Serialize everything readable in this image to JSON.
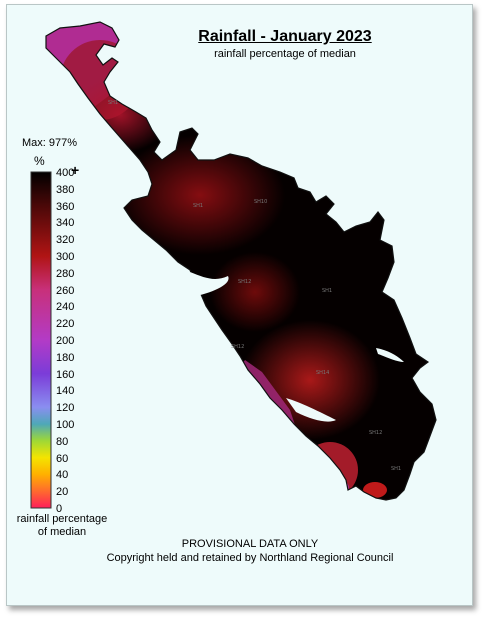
{
  "map": {
    "title": "Rainfall - January 2023",
    "subtitle": "rainfall percentage of median",
    "max_label": "Max: 977%",
    "unit_label": "%",
    "legend_ticks": [
      "400",
      "380",
      "360",
      "340",
      "320",
      "300",
      "280",
      "260",
      "240",
      "220",
      "200",
      "180",
      "160",
      "140",
      "120",
      "100",
      "80",
      "60",
      "40",
      "20",
      "0"
    ],
    "legend_top_symbol": "+",
    "legend_footer": "rainfall percentage of median",
    "notice": "PROVISIONAL DATA ONLY",
    "copyright": "Copyright held and retained by Northland Regional Council",
    "colors": {
      "0": "#ff1f5a",
      "20": "#ff6a2e",
      "40": "#ffb000",
      "60": "#f4e400",
      "80": "#9ed836",
      "100": "#4ea8b8",
      "120": "#8a8ef0",
      "160": "#7b3cd8",
      "200": "#b33bc6",
      "260": "#c8307a",
      "300": "#b01414",
      "360": "#4a0808",
      "400": "#000000"
    },
    "station_labels": [
      "SH1",
      "SH1",
      "SH10",
      "SH12",
      "SH1",
      "SH12",
      "SH14",
      "SH12",
      "SH1"
    ]
  }
}
